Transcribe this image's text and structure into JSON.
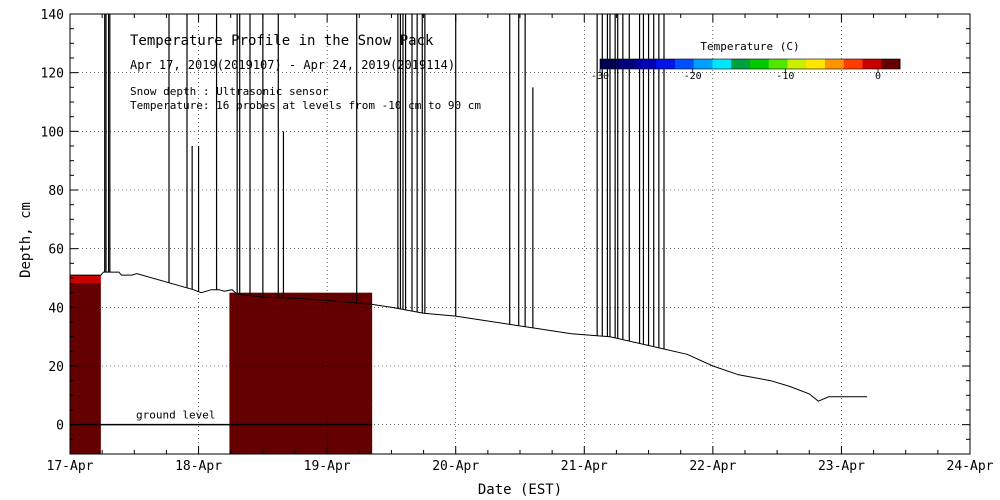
{
  "chart_data": {
    "type": "heatmap",
    "title": "Temperature Profile in the Snow Pack",
    "subtitle": "Apr 17, 2019(2019107) - Apr 24, 2019(2019114)",
    "note_depth": "Snow depth : Ultrasonic sensor",
    "note_temp": "Temperature: 16 probes at levels from -10 cm to 90 cm",
    "xlabel": "Date (EST)",
    "ylabel": "Depth, cm",
    "ylim": [
      -10,
      140
    ],
    "xlim": [
      0,
      7
    ],
    "x_ticks": [
      "17-Apr",
      "18-Apr",
      "19-Apr",
      "20-Apr",
      "21-Apr",
      "22-Apr",
      "23-Apr",
      "24-Apr"
    ],
    "y_ticks": [
      0,
      20,
      40,
      60,
      80,
      100,
      120,
      140
    ],
    "grid": true,
    "ground_level": {
      "label": "ground level",
      "depth": 0
    },
    "colorbar": {
      "label": "Temperature (C)",
      "range": [
        -30,
        0
      ],
      "ticks": [
        -30,
        -20,
        -10,
        0
      ],
      "colors": [
        "#000050",
        "#00007a",
        "#0000b4",
        "#0014e6",
        "#0050ff",
        "#00a0ff",
        "#00e6ff",
        "#00a040",
        "#00c800",
        "#50e600",
        "#c8f000",
        "#ffe600",
        "#ff9600",
        "#ff3c00",
        "#c80000",
        "#640000"
      ]
    },
    "snow_depth_series": [
      [
        0.0,
        51
      ],
      [
        0.24,
        51
      ],
      [
        0.26,
        52
      ],
      [
        0.38,
        52
      ],
      [
        0.4,
        51
      ],
      [
        0.48,
        51
      ],
      [
        0.52,
        51.5
      ],
      [
        0.96,
        46
      ],
      [
        1.02,
        45
      ],
      [
        1.1,
        46
      ],
      [
        1.16,
        46
      ],
      [
        1.2,
        45.5
      ],
      [
        1.26,
        46
      ],
      [
        1.3,
        44.5
      ],
      [
        1.5,
        43.5
      ],
      [
        1.8,
        43
      ],
      [
        2.1,
        42
      ],
      [
        2.35,
        41
      ],
      [
        2.5,
        40
      ],
      [
        2.75,
        38
      ],
      [
        3.0,
        37
      ],
      [
        3.3,
        35
      ],
      [
        3.6,
        33
      ],
      [
        3.9,
        31
      ],
      [
        4.2,
        30
      ],
      [
        4.5,
        27
      ],
      [
        4.8,
        24
      ],
      [
        5.0,
        20
      ],
      [
        5.2,
        17
      ],
      [
        5.45,
        15
      ],
      [
        5.6,
        13
      ],
      [
        5.75,
        10.5
      ],
      [
        5.82,
        8
      ],
      [
        5.9,
        9.5
      ],
      [
        6.1,
        9.5
      ],
      [
        6.2,
        9.5
      ]
    ],
    "depth_spikes": [
      [
        0.27,
        0.27,
        140
      ],
      [
        0.28,
        0.28,
        140
      ],
      [
        0.3,
        0.3,
        140
      ],
      [
        0.31,
        0.31,
        140
      ],
      [
        0.77,
        0.77,
        140
      ],
      [
        0.91,
        0.91,
        140
      ],
      [
        0.95,
        0.95,
        95
      ],
      [
        1.0,
        1.0,
        95
      ],
      [
        1.14,
        1.14,
        140
      ],
      [
        1.3,
        1.3,
        140
      ],
      [
        1.32,
        1.32,
        140
      ],
      [
        1.4,
        1.4,
        140
      ],
      [
        1.5,
        1.5,
        140
      ],
      [
        1.62,
        1.62,
        140
      ],
      [
        1.66,
        1.66,
        100
      ],
      [
        2.23,
        2.23,
        140
      ],
      [
        2.55,
        2.55,
        140
      ],
      [
        2.57,
        2.57,
        140
      ],
      [
        2.59,
        2.59,
        140
      ],
      [
        2.61,
        2.61,
        140
      ],
      [
        2.66,
        2.66,
        140
      ],
      [
        2.7,
        2.7,
        140
      ],
      [
        2.74,
        2.74,
        140
      ],
      [
        2.76,
        2.76,
        140
      ],
      [
        3.0,
        3.0,
        140
      ],
      [
        3.42,
        3.42,
        140
      ],
      [
        3.49,
        3.49,
        140
      ],
      [
        3.54,
        3.54,
        140
      ],
      [
        3.6,
        3.6,
        115
      ],
      [
        4.1,
        4.1,
        140
      ],
      [
        4.14,
        4.14,
        140
      ],
      [
        4.18,
        4.18,
        140
      ],
      [
        4.2,
        4.2,
        140
      ],
      [
        4.24,
        4.24,
        140
      ],
      [
        4.26,
        4.26,
        140
      ],
      [
        4.3,
        4.3,
        140
      ],
      [
        4.35,
        4.35,
        140
      ],
      [
        4.43,
        4.43,
        140
      ],
      [
        4.46,
        4.46,
        140
      ],
      [
        4.5,
        4.5,
        140
      ],
      [
        4.54,
        4.54,
        140
      ],
      [
        4.58,
        4.58,
        140
      ],
      [
        4.62,
        4.62,
        140
      ]
    ],
    "temperature_blocks": [
      {
        "x0": 0.0,
        "x1": 0.24,
        "ymin": -10,
        "ymax": 51,
        "temp_low": -0.5,
        "temp_top": -2
      },
      {
        "x0": 1.24,
        "x1": 2.35,
        "ymin": -10,
        "ymax": 45,
        "temp_low": -0.3,
        "temp_top": 0
      }
    ]
  }
}
